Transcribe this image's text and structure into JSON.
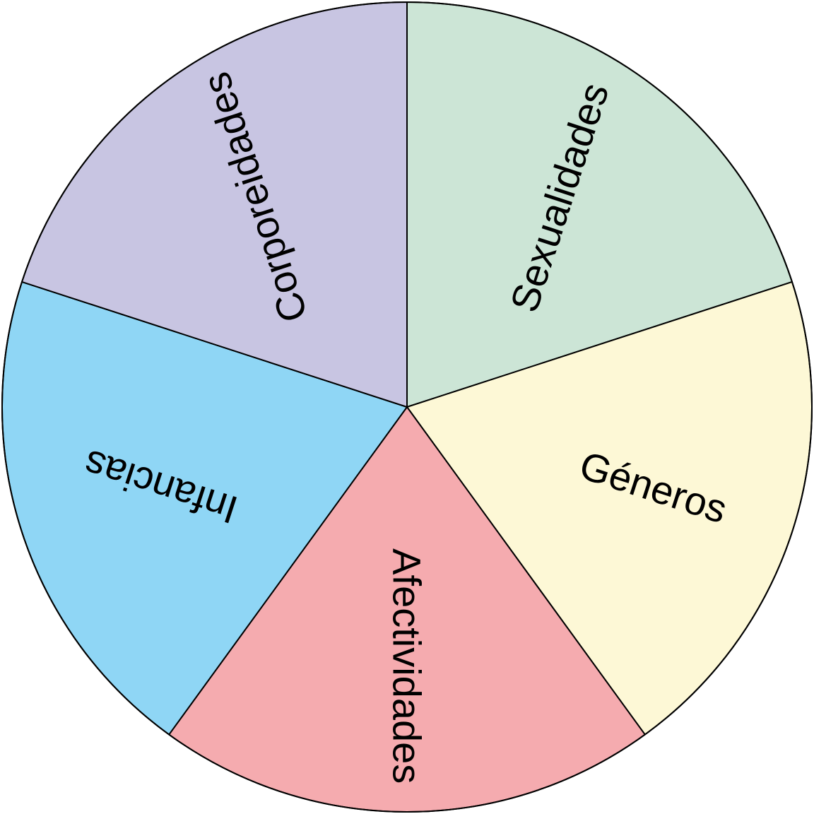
{
  "wheel": {
    "slices": [
      {
        "label": "Sexualidades",
        "color": "#cce5d6"
      },
      {
        "label": "Géneros",
        "color": "#fdf8d6"
      },
      {
        "label": "Afectividades",
        "color": "#f5abaf"
      },
      {
        "label": "Infancias",
        "color": "#8fd6f5"
      },
      {
        "label": "Corporeidades",
        "color": "#c8c5e2"
      }
    ]
  }
}
